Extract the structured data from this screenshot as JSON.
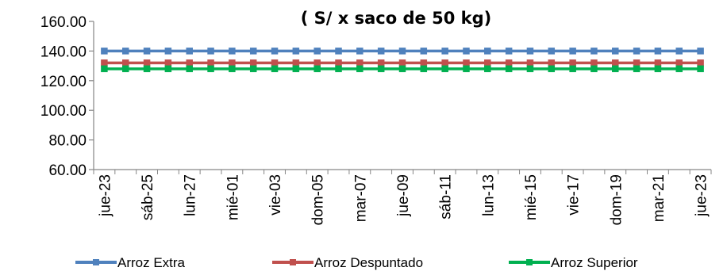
{
  "chart_data": {
    "type": "line",
    "title": "( S/ x saco de 50 kg)",
    "xlabel": "",
    "ylabel": "",
    "ylim": [
      60,
      160
    ],
    "yticks": [
      "60.00",
      "80.00",
      "100.00",
      "120.00",
      "140.00",
      "160.00"
    ],
    "grid": false,
    "legend_position": "bottom",
    "x_labels": [
      "jue-23",
      "sáb-25",
      "lun-27",
      "mié-01",
      "vie-03",
      "dom-05",
      "mar-07",
      "jue-09",
      "sáb-11",
      "lun-13",
      "mié-15",
      "vie-17",
      "dom-19",
      "mar-21",
      "jue-23"
    ],
    "n_points": 29,
    "series": [
      {
        "name": "Arroz Extra",
        "color": "#4F81BD",
        "value": 140
      },
      {
        "name": "Arroz Despuntado",
        "color": "#C0504D",
        "value": 132
      },
      {
        "name": "Arroz Superior",
        "color": "#00B050",
        "value": 128
      }
    ]
  }
}
